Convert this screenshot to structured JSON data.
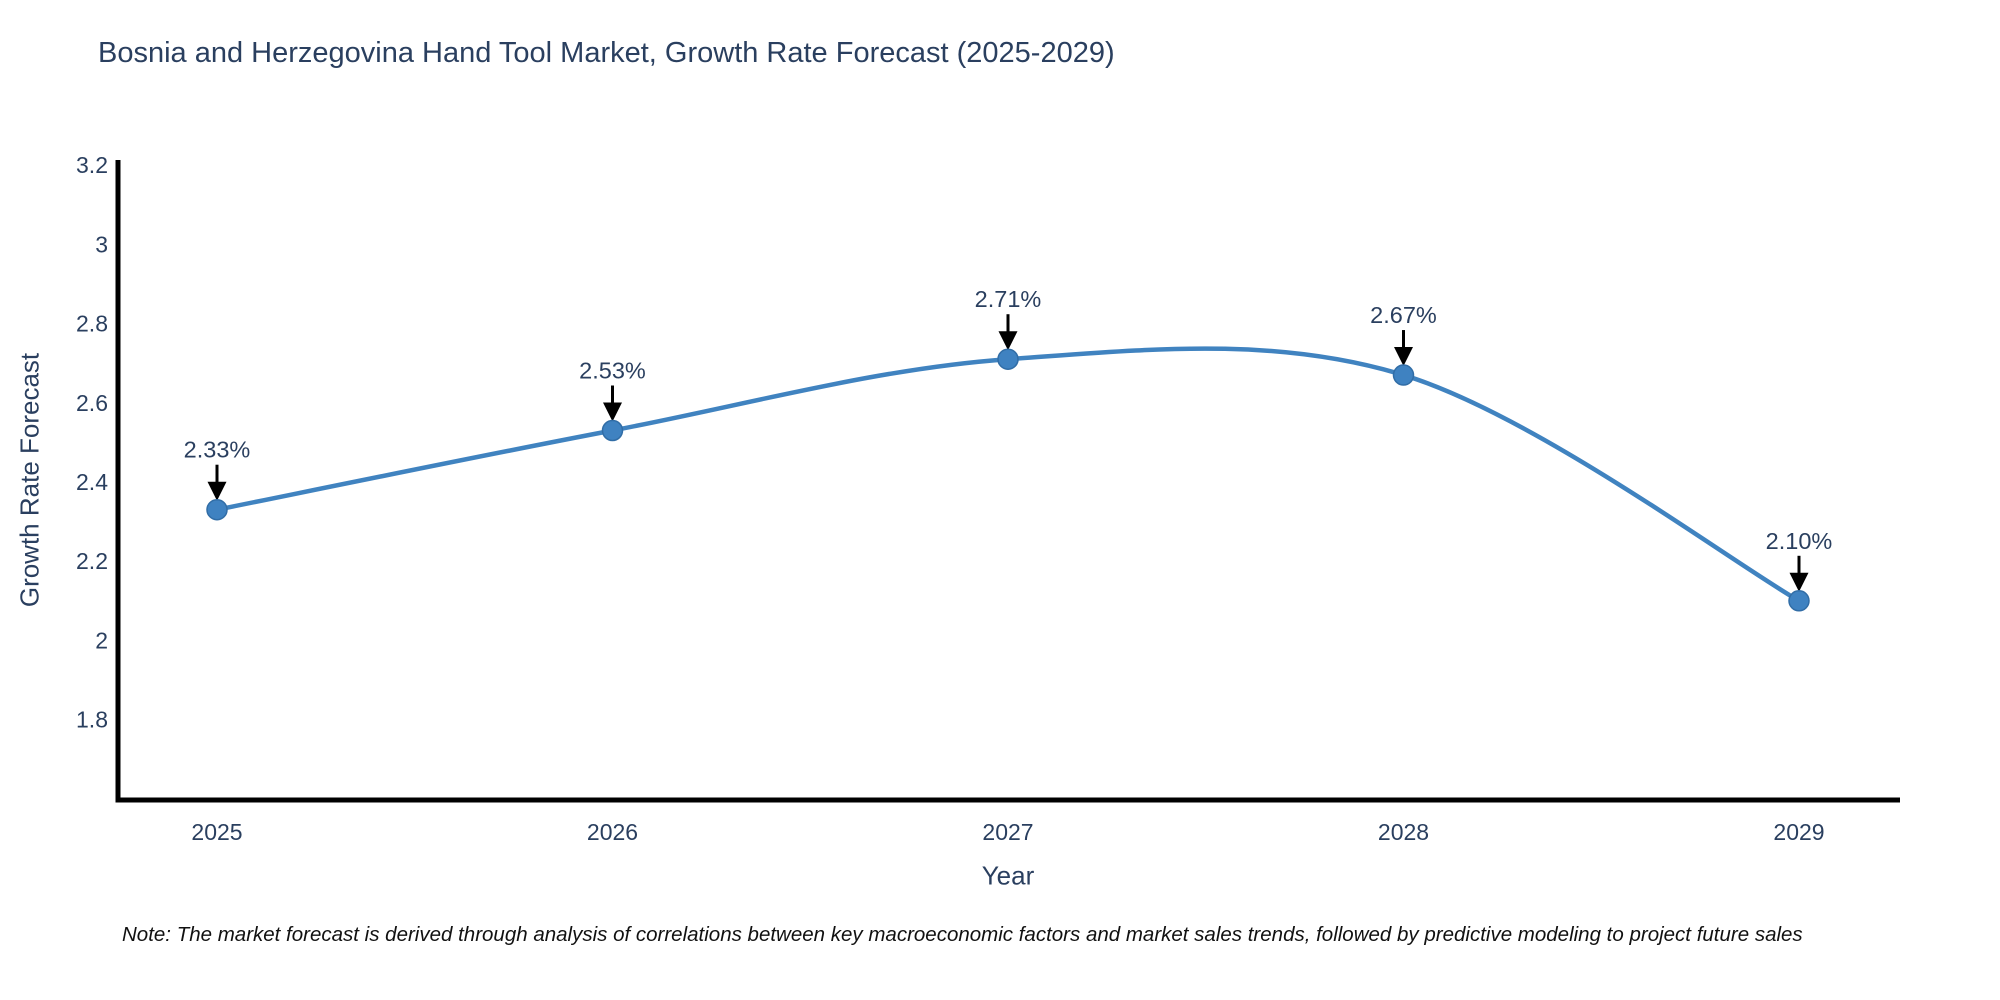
{
  "header": {
    "title": "Bosnia and Herzegovina Hand Tool Market, Growth Rate Forecast (2025-2029)"
  },
  "footnote": "Note: The market forecast is derived through analysis of correlations between key macroeconomic factors and market sales trends, followed by predictive modeling to project future sales",
  "chart_data": {
    "type": "line",
    "title": "Bosnia and Herzegovina Hand Tool Market, Growth Rate Forecast (2025-2029)",
    "xlabel": "Year",
    "ylabel": "Growth Rate Forecast",
    "categories": [
      "2025",
      "2026",
      "2027",
      "2028",
      "2029"
    ],
    "values": [
      2.33,
      2.53,
      2.71,
      2.67,
      2.1
    ],
    "point_labels": [
      "2.33%",
      "2.53%",
      "2.71%",
      "2.67%",
      "2.10%"
    ],
    "ytick_values": [
      1.8,
      2.0,
      2.2,
      2.4,
      2.6,
      2.8,
      3.0,
      3.2
    ],
    "ytick_labels": [
      "1.8",
      "2",
      "2.2",
      "2.4",
      "2.6",
      "2.8",
      "3",
      "3.2"
    ],
    "ylim": [
      1.597,
      3.213
    ],
    "line_shape": "spline",
    "grid": false,
    "legend": "none",
    "colors": {
      "line": "#4083c0",
      "marker": "#3f82c1",
      "marker_edge": "#316da6",
      "axis": "#000000",
      "tick_text": "#2a3f5f",
      "annotation_text": "#2a3f5f",
      "annotation_arrow": "#000000",
      "background": "#ffffff"
    }
  }
}
